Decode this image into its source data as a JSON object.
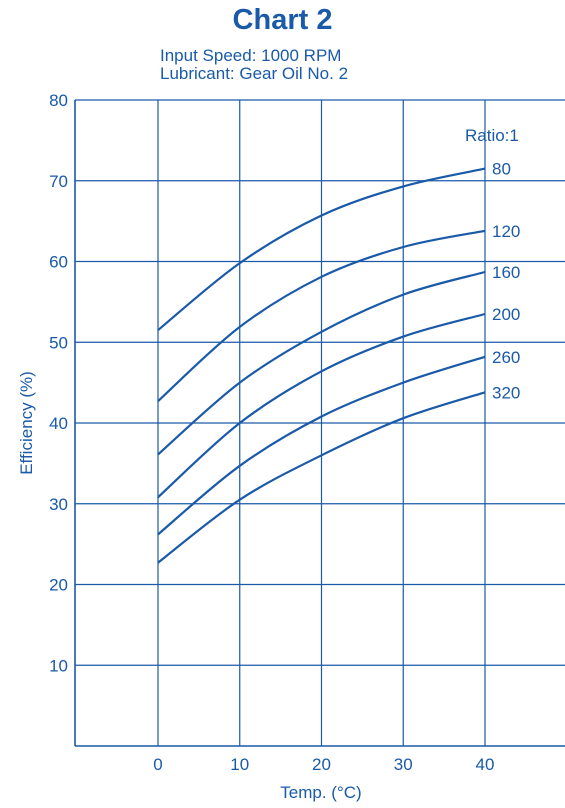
{
  "chart_data": {
    "type": "line",
    "title": "Chart 2",
    "subtitle_lines": [
      "Input Speed: 1000 RPM",
      "Lubricant: Gear Oil No. 2"
    ],
    "xlabel": "Temp. (°C)",
    "ylabel": "Efficiency (%)",
    "xlim": [
      -10,
      40
    ],
    "ylim": [
      0,
      80
    ],
    "x_ticks": [
      0,
      10,
      20,
      30,
      40
    ],
    "y_ticks": [
      10,
      20,
      30,
      40,
      50,
      60,
      70,
      80
    ],
    "grid": true,
    "legend_title": "Ratio:1",
    "x": [
      0,
      10,
      20,
      30,
      40
    ],
    "series": [
      {
        "name": "80",
        "values": [
          51.5,
          59.8,
          65.7,
          69.3,
          71.5
        ]
      },
      {
        "name": "120",
        "values": [
          42.7,
          51.9,
          58.1,
          61.8,
          63.8
        ]
      },
      {
        "name": "160",
        "values": [
          36.1,
          45.0,
          51.3,
          55.9,
          58.7
        ]
      },
      {
        "name": "200",
        "values": [
          30.8,
          40.0,
          46.4,
          50.7,
          53.5
        ]
      },
      {
        "name": "260",
        "values": [
          26.2,
          34.7,
          40.8,
          45.0,
          48.2
        ]
      },
      {
        "name": "320",
        "values": [
          22.7,
          30.5,
          36.0,
          40.6,
          43.8
        ]
      }
    ],
    "color": "#1a5aa8"
  }
}
